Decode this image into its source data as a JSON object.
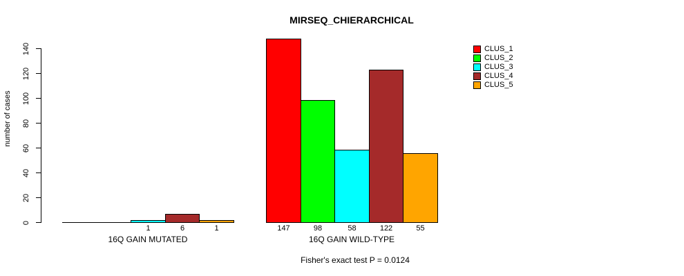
{
  "chart_data": {
    "type": "bar",
    "title": "MIRSEQ_CHIERARCHICAL",
    "ylabel": "number of cases",
    "ylim": [
      0,
      140
    ],
    "yticks": [
      0,
      20,
      40,
      60,
      80,
      100,
      120,
      140
    ],
    "grid": false,
    "legend_position": "top-right",
    "clusters": [
      {
        "name": "CLUS_1",
        "color": "#FF0000"
      },
      {
        "name": "CLUS_2",
        "color": "#00FF00"
      },
      {
        "name": "CLUS_3",
        "color": "#00FFFF"
      },
      {
        "name": "CLUS_4",
        "color": "#A52A2A"
      },
      {
        "name": "CLUS_5",
        "color": "#FFA500"
      }
    ],
    "groups": [
      {
        "label": "16Q GAIN MUTATED",
        "values": [
          0,
          0,
          1,
          6,
          1
        ],
        "bar_labels": [
          "",
          "",
          "1",
          "6",
          "1"
        ]
      },
      {
        "label": "16Q GAIN WILD-TYPE",
        "values": [
          147,
          98,
          58,
          122,
          55
        ],
        "bar_labels": [
          "147",
          "98",
          "58",
          "122",
          "55"
        ]
      }
    ],
    "annotation": "Fisher's exact test P = 0.0124"
  }
}
